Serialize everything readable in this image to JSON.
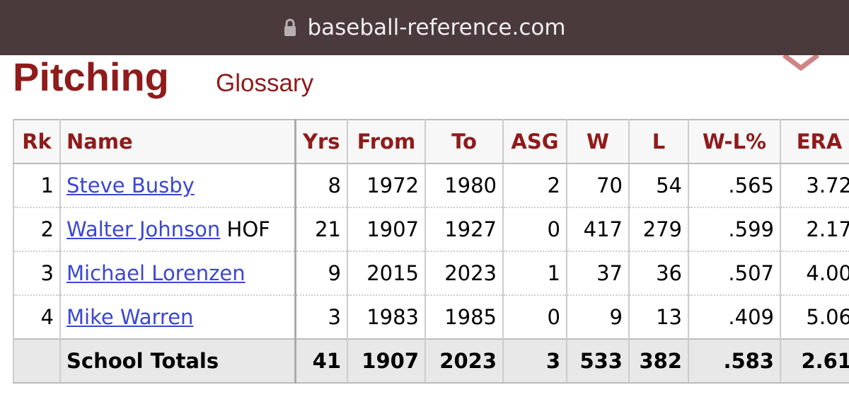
{
  "browser": {
    "url": "baseball-reference.com"
  },
  "section": {
    "title": "Pitching",
    "glossary": "Glossary"
  },
  "table": {
    "headers": [
      "Rk",
      "Name",
      "Yrs",
      "From",
      "To",
      "ASG",
      "W",
      "L",
      "W-L%",
      "ERA"
    ],
    "rows": [
      {
        "rk": "1",
        "name": "Steve Busby",
        "stats": [
          "8",
          "1972",
          "1980",
          "2",
          "70",
          "54",
          ".565",
          "3.72"
        ]
      },
      {
        "rk": "2",
        "name": "Walter Johnson",
        "tag": "HOF",
        "stats": [
          "21",
          "1907",
          "1927",
          "0",
          "417",
          "279",
          ".599",
          "2.17"
        ]
      },
      {
        "rk": "3",
        "name": "Michael Lorenzen",
        "stats": [
          "9",
          "2015",
          "2023",
          "1",
          "37",
          "36",
          ".507",
          "4.00"
        ]
      },
      {
        "rk": "4",
        "name": "Mike Warren",
        "stats": [
          "3",
          "1983",
          "1985",
          "0",
          "9",
          "13",
          ".409",
          "5.06"
        ]
      }
    ],
    "totals": {
      "label": "School Totals",
      "stats": [
        "41",
        "1907",
        "2023",
        "3",
        "533",
        "382",
        ".583",
        "2.61"
      ]
    }
  }
}
